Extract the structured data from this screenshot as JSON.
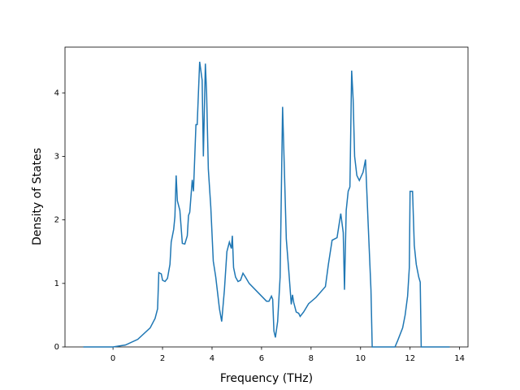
{
  "chart_data": {
    "type": "line",
    "x_label": "Frequency (THz)",
    "y_label": "Density of States",
    "x": [
      -1.2,
      0,
      0.5,
      1.0,
      1.5,
      1.7,
      1.8,
      1.85,
      1.95,
      2.0,
      2.1,
      2.2,
      2.3,
      2.35,
      2.45,
      2.5,
      2.55,
      2.6,
      2.7,
      2.8,
      2.9,
      3.0,
      3.05,
      3.1,
      3.2,
      3.25,
      3.35,
      3.4,
      3.5,
      3.6,
      3.65,
      3.73,
      3.78,
      3.85,
      3.95,
      4.05,
      4.15,
      4.3,
      4.39,
      4.5,
      4.6,
      4.7,
      4.78,
      4.82,
      4.87,
      4.95,
      5.05,
      5.15,
      5.25,
      5.35,
      5.5,
      5.8,
      6.0,
      6.2,
      6.3,
      6.4,
      6.45,
      6.5,
      6.56,
      6.65,
      6.75,
      6.85,
      6.9,
      7.0,
      7.1,
      7.2,
      7.25,
      7.3,
      7.4,
      7.5,
      7.56,
      7.7,
      7.9,
      8.2,
      8.58,
      8.7,
      8.85,
      9.05,
      9.2,
      9.3,
      9.35,
      9.42,
      9.5,
      9.57,
      9.64,
      9.7,
      9.76,
      9.85,
      9.95,
      10.1,
      10.2,
      10.3,
      10.42,
      10.47,
      11.39,
      11.5,
      11.7,
      11.8,
      11.9,
      11.97,
      12.0,
      12.1,
      12.17,
      12.25,
      12.35,
      12.41,
      12.45,
      13.6
    ],
    "series": [
      {
        "name": "DOS",
        "color": "#1f77b4",
        "values": [
          0,
          0,
          0.03,
          0.12,
          0.3,
          0.45,
          0.6,
          1.17,
          1.15,
          1.05,
          1.03,
          1.08,
          1.3,
          1.65,
          1.85,
          2.05,
          2.7,
          2.3,
          2.15,
          1.63,
          1.62,
          1.75,
          2.07,
          2.12,
          2.63,
          2.45,
          3.5,
          3.5,
          4.49,
          4.2,
          3.0,
          4.46,
          4.0,
          2.8,
          2.2,
          1.35,
          1.1,
          0.6,
          0.4,
          0.9,
          1.5,
          1.65,
          1.55,
          1.75,
          1.25,
          1.1,
          1.03,
          1.05,
          1.16,
          1.1,
          1.0,
          0.88,
          0.8,
          0.72,
          0.72,
          0.8,
          0.75,
          0.25,
          0.15,
          0.4,
          1.1,
          3.78,
          3.1,
          1.7,
          1.2,
          0.67,
          0.82,
          0.7,
          0.55,
          0.53,
          0.48,
          0.55,
          0.68,
          0.78,
          0.95,
          1.3,
          1.68,
          1.72,
          2.1,
          1.8,
          0.9,
          2.15,
          2.45,
          2.52,
          4.35,
          3.9,
          3.0,
          2.7,
          2.62,
          2.75,
          2.95,
          2.0,
          0.9,
          0,
          0,
          0.1,
          0.3,
          0.5,
          0.8,
          1.25,
          2.45,
          2.45,
          1.6,
          1.3,
          1.1,
          1.02,
          0,
          0
        ]
      }
    ],
    "xlim": [
      -1.94,
      14.34
    ],
    "ylim": [
      0,
      4.72
    ],
    "xticks": [
      0,
      2,
      4,
      6,
      8,
      10,
      12,
      14
    ],
    "yticks": [
      0,
      1,
      2,
      3,
      4
    ]
  }
}
